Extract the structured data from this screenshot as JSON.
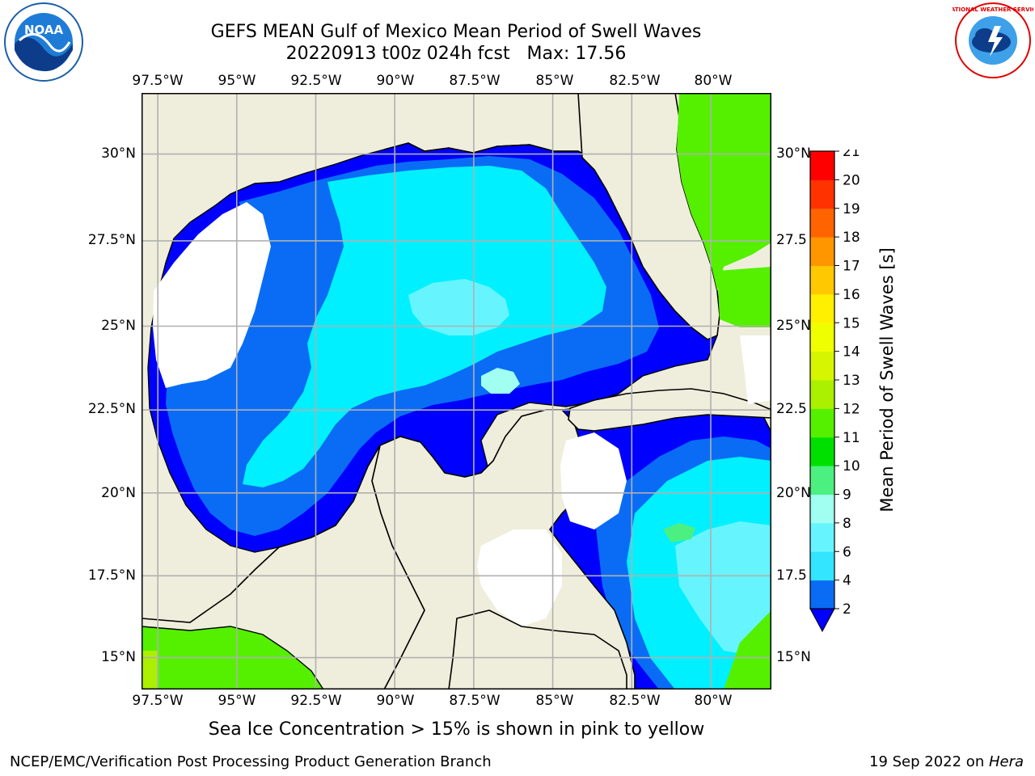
{
  "title": {
    "line1": "GEFS MEAN Gulf of Mexico Mean Period of Swell Waves",
    "line2": "20220913 t00z 024h fcst   Max: 17.56"
  },
  "map": {
    "lon_range": [
      -98.5,
      -77.5
    ],
    "lat_range": [
      14,
      31.8
    ],
    "lon_ticks": [
      "97.5°W",
      "95°W",
      "92.5°W",
      "90°W",
      "87.5°W",
      "85°W",
      "82.5°W",
      "80°W"
    ],
    "lat_ticks": [
      "30°N",
      "27.5°N",
      "25°N",
      "22.5°N",
      "20°N",
      "17.5°N",
      "15°N"
    ],
    "right_lat_ticks": [
      "30°N",
      "27.5",
      "25°N",
      "22.5",
      "20°N",
      "17.5",
      "15°N"
    ],
    "land_color": "#efeedc",
    "grid_color": "#b0b0b0"
  },
  "colorbar": {
    "label": "Mean Period of Swell Waves [s]",
    "ticks": [
      "2",
      "4",
      "6",
      "8",
      "9",
      "10",
      "11",
      "12",
      "13",
      "14",
      "15",
      "16",
      "17",
      "18",
      "19",
      "20",
      "21"
    ],
    "colors": [
      "#0a6cf5",
      "#00c8ff",
      "#33e5ff",
      "#66f5ff",
      "#a0fff0",
      "#4cf080",
      "#00e000",
      "#55f000",
      "#aaf000",
      "#d5f500",
      "#f0ff00",
      "#fff000",
      "#ffc800",
      "#ff9600",
      "#ff6400",
      "#ff3200",
      "#ff0000"
    ],
    "extend_color": "#0000ff"
  },
  "footer": {
    "note": "Sea Ice Concentration > 15% is shown in pink to yellow",
    "credit": "NCEP/EMC/Verification Post Processing Product Generation Branch",
    "date": "19 Sep 2022 on ",
    "host": "Hera"
  },
  "logos": {
    "noaa_text": "NOAA",
    "nws_text": "NATIONAL WEATHER SERVICE"
  }
}
